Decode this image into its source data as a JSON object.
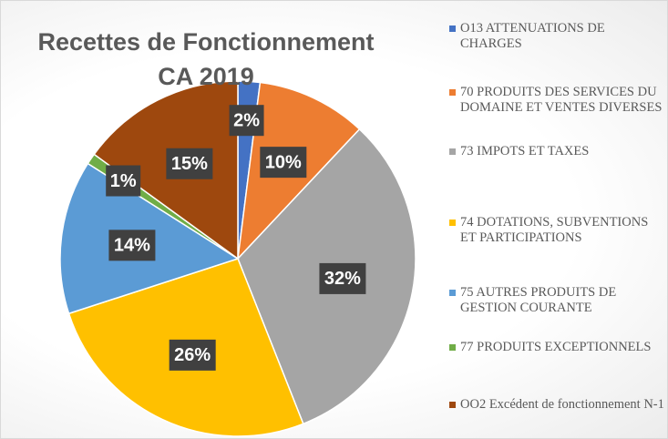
{
  "chart_data": {
    "type": "pie",
    "title": "Recettes de Fonctionnement CA 2019",
    "categories": [
      "O13 ATTENUATIONS DE CHARGES",
      "70 PRODUITS DES SERVICES DU DOMAINE ET VENTES DIVERSES",
      "73 IMPOTS ET TAXES",
      "74 DOTATIONS, SUBVENTIONS ET PARTICIPATIONS",
      "75 AUTRES PRODUITS DE GESTION COURANTE",
      "77 PRODUITS EXCEPTIONNELS",
      "OO2 Excédent de fonctionnement N-1"
    ],
    "values": [
      2,
      10,
      32,
      26,
      14,
      1,
      15
    ],
    "value_labels": [
      "2%",
      "10%",
      "32%",
      "26%",
      "14%",
      "1%",
      "15%"
    ],
    "colors": [
      "#4472c4",
      "#ed7d31",
      "#a5a5a5",
      "#ffc000",
      "#5b9bd5",
      "#70ad47",
      "#9e480e"
    ],
    "legend": "right"
  }
}
